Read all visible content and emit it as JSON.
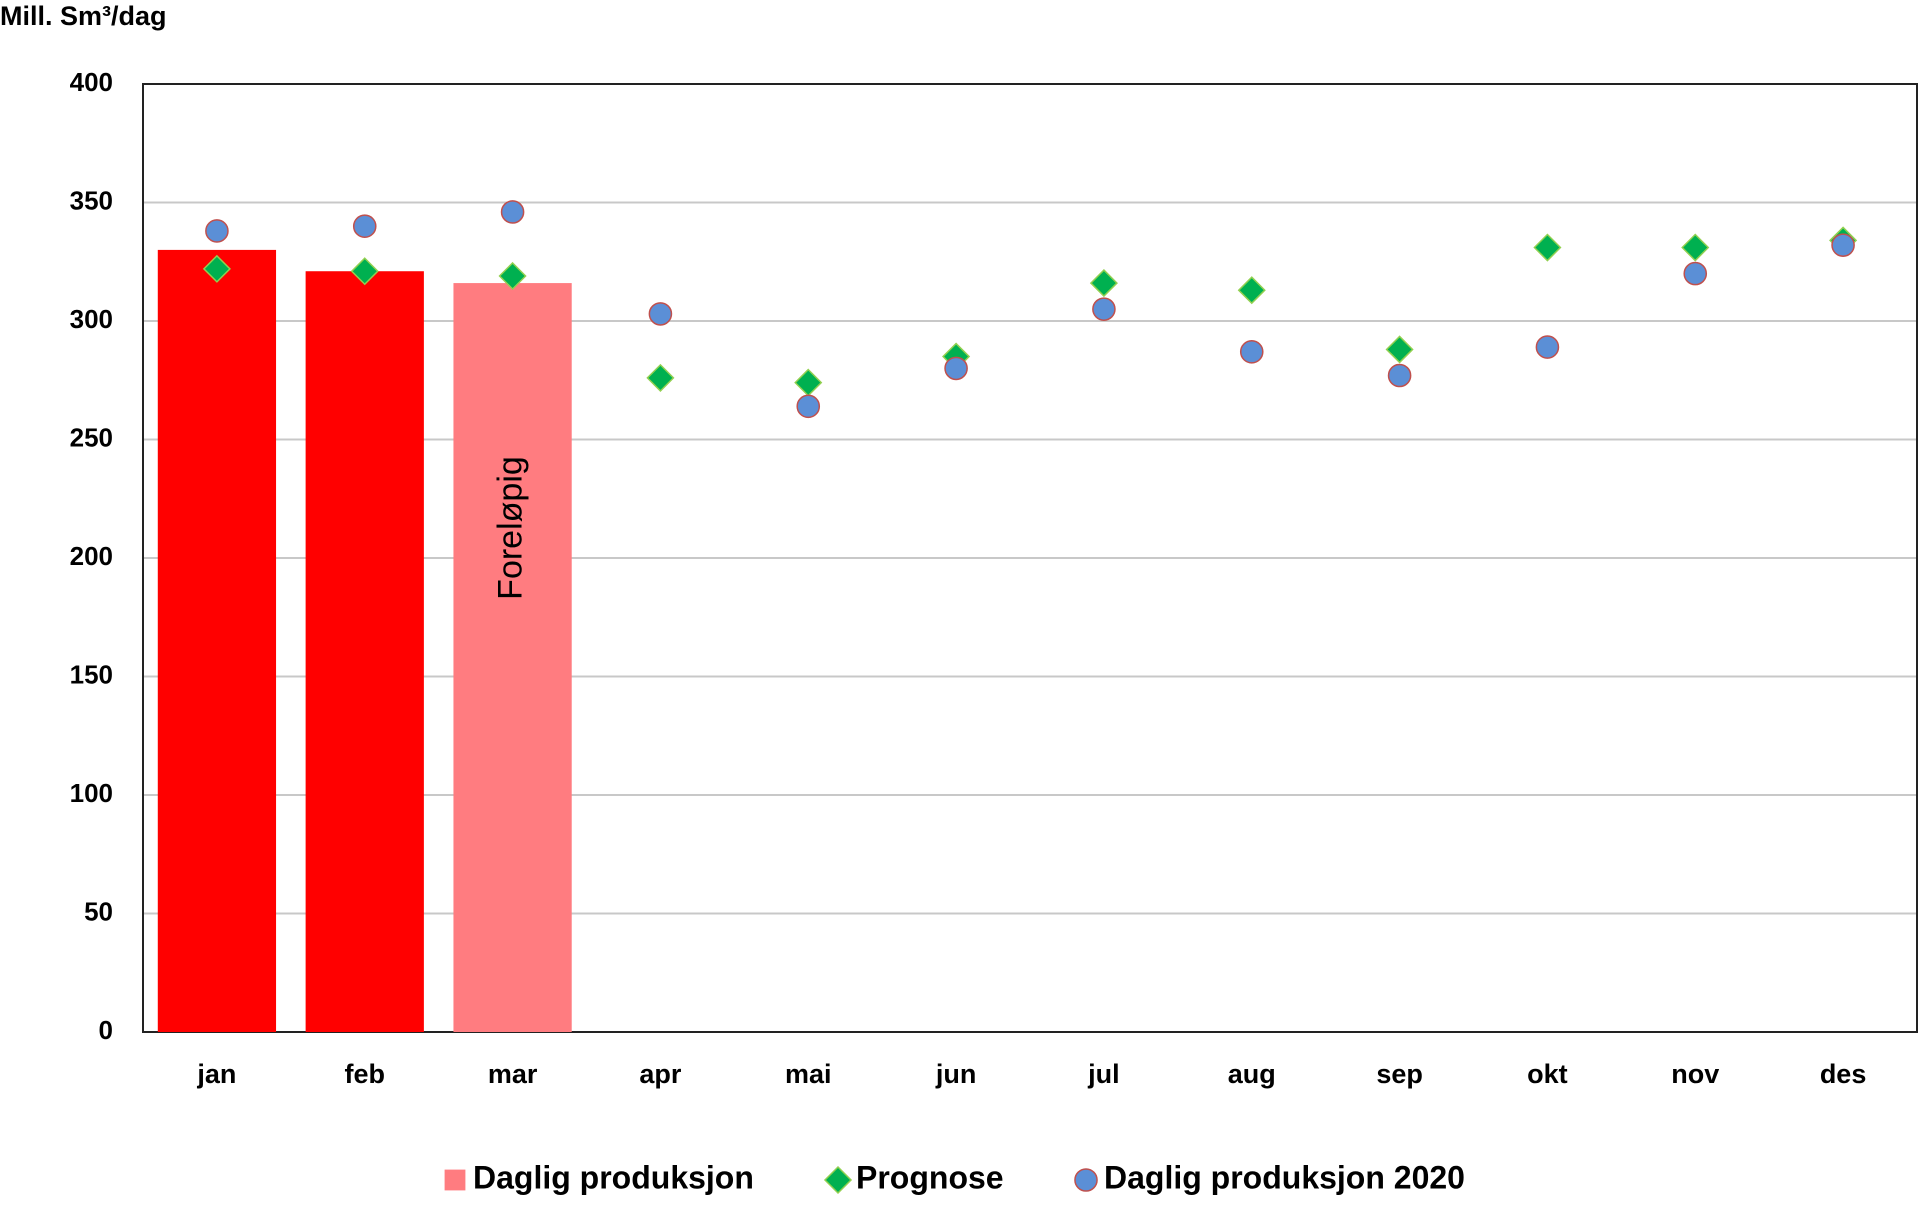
{
  "chart_data": {
    "type": "bar",
    "y_label": "Mill. Sm³/dag",
    "categories": [
      "jan",
      "feb",
      "mar",
      "apr",
      "mai",
      "jun",
      "jul",
      "aug",
      "sep",
      "okt",
      "nov",
      "des"
    ],
    "series": [
      {
        "name": "Daglig produksjon",
        "type": "bar",
        "color": "#ff7c80",
        "colors": [
          "#ff0000",
          "#ff0000",
          "#ff7c80",
          "#ff7c80",
          "#ff7c80",
          "#ff7c80",
          "#ff7c80",
          "#ff7c80",
          "#ff7c80",
          "#ff7c80",
          "#ff7c80",
          "#ff7c80"
        ],
        "values": [
          330,
          321,
          316,
          null,
          null,
          null,
          null,
          null,
          null,
          null,
          null,
          null
        ]
      },
      {
        "name": "Prognose",
        "type": "scatter",
        "marker": "diamond",
        "color": "#00b050",
        "edge": "#92d050",
        "values": [
          322,
          321,
          319,
          276,
          274,
          285,
          316,
          313,
          288,
          331,
          331,
          334
        ]
      },
      {
        "name": "Daglig produksjon 2020",
        "type": "scatter",
        "marker": "circle",
        "color": "#5b8fd6",
        "edge": "#c0504d",
        "values": [
          338,
          340,
          346,
          303,
          264,
          280,
          305,
          287,
          277,
          289,
          320,
          332
        ]
      }
    ],
    "annotation": "Foreløpig",
    "ylim": [
      0,
      400
    ],
    "yticks": [
      0,
      50,
      100,
      150,
      200,
      250,
      300,
      350,
      400
    ],
    "grid": true
  }
}
